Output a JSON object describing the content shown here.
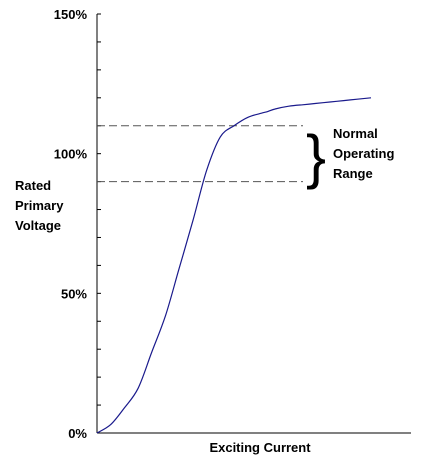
{
  "chart_data": {
    "type": "line",
    "title": "",
    "xlabel": "Exciting Current",
    "ylabel_lines": [
      "Rated",
      "Primary",
      "Voltage"
    ],
    "ylim": [
      0,
      150
    ],
    "xlim": [
      0,
      100
    ],
    "y_tick_labels": [
      {
        "value": 0,
        "label": "0%"
      },
      {
        "value": 50,
        "label": "50%"
      },
      {
        "value": 100,
        "label": "100%"
      },
      {
        "value": 150,
        "label": "150%"
      }
    ],
    "minor_tick_step": 10,
    "grid": false,
    "series": [
      {
        "color": "#1a1a8c",
        "x": [
          0,
          5,
          10,
          15,
          20,
          25,
          30,
          35,
          40,
          45,
          50,
          55,
          60,
          62,
          65,
          70,
          75,
          80,
          85,
          90,
          95,
          100
        ],
        "y": [
          0,
          3,
          9,
          16,
          29,
          42,
          59,
          76,
          94,
          106,
          110,
          113,
          114.5,
          115,
          116,
          117,
          117.5,
          118,
          118.5,
          119,
          119.5,
          120
        ]
      }
    ],
    "reference_lines": [
      {
        "y": 110,
        "style": "dashed"
      },
      {
        "y": 90,
        "style": "dashed"
      }
    ],
    "annotation": {
      "lines": [
        "Normal",
        "Operating",
        "Range"
      ],
      "y_range": [
        90,
        110
      ],
      "marker": "}"
    }
  }
}
